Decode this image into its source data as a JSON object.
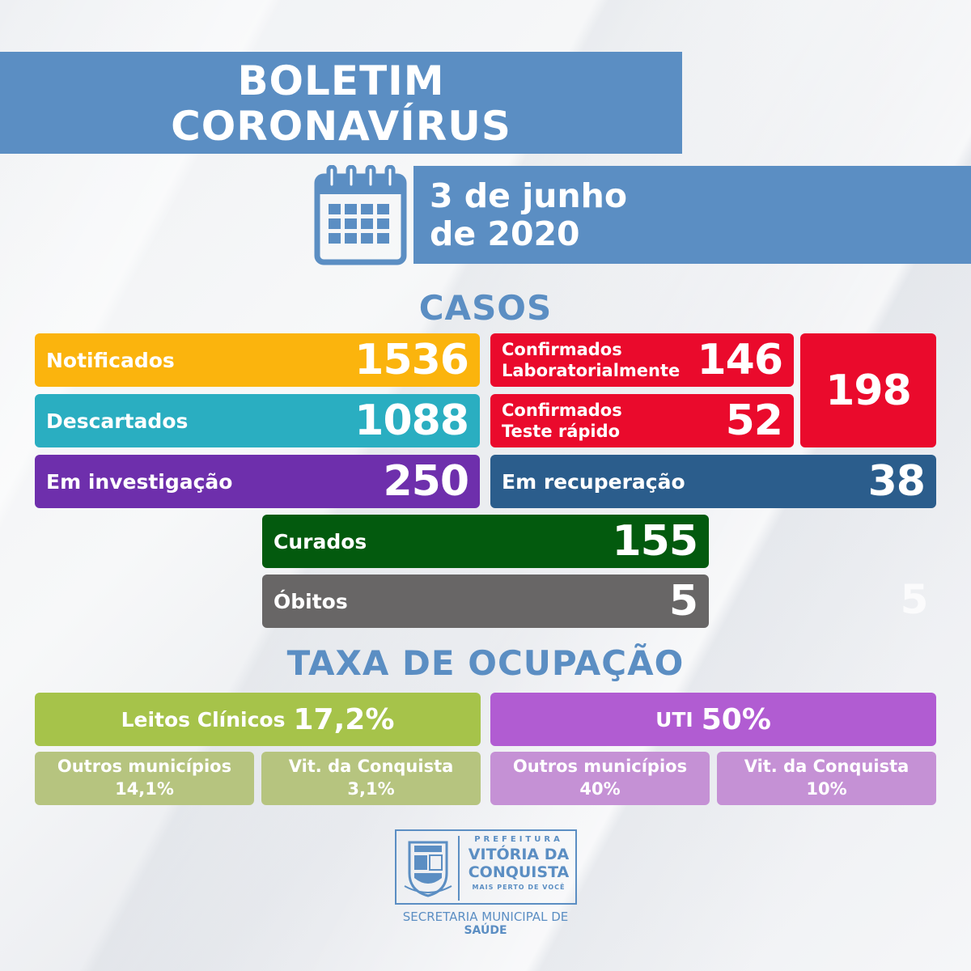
{
  "header": {
    "title_line1": "BOLETIM",
    "title_line2": "CORONAVÍRUS",
    "date_line1": "3 de junho",
    "date_line2": "de 2020",
    "calendar_icon": "calendar-icon"
  },
  "casos": {
    "heading": "CASOS",
    "notificados": {
      "label": "Notificados",
      "value": "1536"
    },
    "descartados": {
      "label": "Descartados",
      "value": "1088"
    },
    "investigacao": {
      "label": "Em investigação",
      "value": "250"
    },
    "conf_lab": {
      "label_line1": "Confirmados",
      "label_line2": "Laboratorialmente",
      "value": "146"
    },
    "conf_teste": {
      "label_line1": "Confirmados",
      "label_line2": "Teste rápido",
      "value": "52"
    },
    "confirmados_total": "198",
    "recuperacao": {
      "label": "Em recuperação",
      "value": "38"
    },
    "curados": {
      "label": "Curados",
      "value": "155"
    },
    "obitos": {
      "label": "Óbitos",
      "value": "5"
    },
    "ghost_value": "5"
  },
  "ocupacao": {
    "heading": "TAXA DE OCUPAÇÃO",
    "leitos": {
      "label": "Leitos Clínicos",
      "value": "17,2%",
      "outros_label": "Outros municípios",
      "outros_value": "14,1%",
      "vdc_label": "Vit. da Conquista",
      "vdc_value": "3,1%"
    },
    "uti": {
      "label": "UTI",
      "value": "50%",
      "outros_label": "Outros municípios",
      "outros_value": "40%",
      "vdc_label": "Vit. da Conquista",
      "vdc_value": "10%"
    }
  },
  "footer": {
    "prefeitura": "PREFEITURA",
    "city_line1": "VITÓRIA DA",
    "city_line2": "CONQUISTA",
    "slogan": "MAIS PERTO DE VOCÊ",
    "secretaria": "SECRETARIA MUNICIPAL DE",
    "saude": "SAÚDE",
    "crest_icon": "coat-of-arms-icon"
  },
  "colors": {
    "title_blue": "#5b8ec3",
    "notificados": "#fbb40d",
    "descartados": "#2aaec1",
    "investigacao": "#6e2fac",
    "confirmados": "#ea0a2c",
    "recuperacao": "#2b5d8c",
    "curados": "#035a0e",
    "obitos": "#686666",
    "leitos": "#a6c34a",
    "leitos_sub": "#b6c47f",
    "uti": "#b15cd2",
    "uti_sub": "#c591d5"
  }
}
